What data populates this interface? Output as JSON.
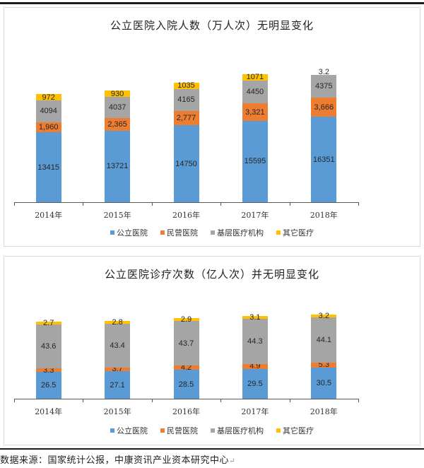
{
  "colors": {
    "public": "#5b9bd5",
    "private": "#ed7d31",
    "primary": "#a5a5a5",
    "other": "#ffc000"
  },
  "legend": [
    "公立医院",
    "民营医院",
    "基层医疗机构",
    "其它医疗"
  ],
  "chart_data": [
    {
      "type": "bar",
      "stacked": true,
      "title": "公立医院入院人数（万人次）无明显变化",
      "categories": [
        "2014年",
        "2015年",
        "2016年",
        "2017年",
        "2018年"
      ],
      "series": [
        {
          "name": "公立医院",
          "values": [
            13415,
            13721,
            14750,
            15595,
            16351
          ],
          "labels": [
            "13415",
            "13721",
            "14750",
            "15595",
            "16351"
          ]
        },
        {
          "name": "民营医院",
          "values": [
            1960,
            2365,
            2777,
            3321,
            3666
          ],
          "labels": [
            "1,960",
            "2,365",
            "2,777",
            "3,321",
            "3,666"
          ]
        },
        {
          "name": "基层医疗机构",
          "values": [
            4094,
            4037,
            4165,
            4450,
            4375
          ],
          "labels": [
            "4094",
            "4037",
            "4165",
            "4450",
            "4375"
          ]
        },
        {
          "name": "其它医疗",
          "values": [
            972,
            930,
            1035,
            1071,
            3.2
          ],
          "labels": [
            "972",
            "930",
            "1035",
            "1071",
            "3.2"
          ]
        }
      ],
      "xlabel": "",
      "ylabel": "",
      "grid": false,
      "legend_position": "bottom"
    },
    {
      "type": "bar",
      "stacked": true,
      "title": "公立医院诊疗次数（亿人次）并无明显变化",
      "categories": [
        "2014年",
        "2015年",
        "2016年",
        "2017年",
        "2018年"
      ],
      "series": [
        {
          "name": "公立医院",
          "values": [
            26.5,
            27.1,
            28.5,
            29.5,
            30.5
          ],
          "labels": [
            "26.5",
            "27.1",
            "28.5",
            "29.5",
            "30.5"
          ]
        },
        {
          "name": "民营医院",
          "values": [
            3.3,
            3.7,
            4.2,
            4.9,
            5.3
          ],
          "labels": [
            "3.3",
            "3.7",
            "4.2",
            "4.9",
            "5.3"
          ]
        },
        {
          "name": "基层医疗机构",
          "values": [
            43.6,
            43.4,
            43.7,
            44.3,
            44.1
          ],
          "labels": [
            "43.6",
            "43.4",
            "43.7",
            "44.3",
            "44.1"
          ]
        },
        {
          "name": "其它医疗",
          "values": [
            2.7,
            2.8,
            2.9,
            3.1,
            3.2
          ],
          "labels": [
            "2.7",
            "2.8",
            "2.9",
            "3.1",
            "3.2"
          ]
        }
      ],
      "xlabel": "",
      "ylabel": "",
      "grid": false,
      "legend_position": "bottom"
    }
  ],
  "source": "数据来源：国家统计公报，中康资讯产业资本研究中心"
}
